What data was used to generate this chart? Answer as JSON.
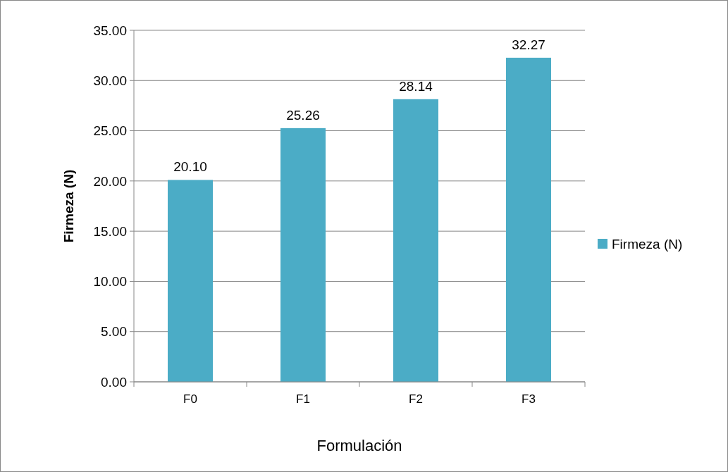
{
  "chart_data": {
    "type": "bar",
    "xlabel": "Formulación",
    "ylabel": "Firmeza (N)",
    "categories": [
      "F0",
      "F1",
      "F2",
      "F3"
    ],
    "series": [
      {
        "name": "Firmeza (N)",
        "color": "#4bacc6",
        "values": [
          20.1,
          25.26,
          28.14,
          32.27
        ],
        "value_labels": [
          "20.10",
          "25.26",
          "28.14",
          "32.27"
        ]
      }
    ],
    "ylim": [
      0,
      35
    ],
    "yticks": [
      {
        "value": 0,
        "label": "0.00"
      },
      {
        "value": 5,
        "label": "5.00"
      },
      {
        "value": 10,
        "label": "10.00"
      },
      {
        "value": 15,
        "label": "15.00"
      },
      {
        "value": 20,
        "label": "20.00"
      },
      {
        "value": 25,
        "label": "25.00"
      },
      {
        "value": 30,
        "label": "30.00"
      },
      {
        "value": 35,
        "label": "35.00"
      }
    ],
    "grid": "y",
    "legend": "right"
  }
}
